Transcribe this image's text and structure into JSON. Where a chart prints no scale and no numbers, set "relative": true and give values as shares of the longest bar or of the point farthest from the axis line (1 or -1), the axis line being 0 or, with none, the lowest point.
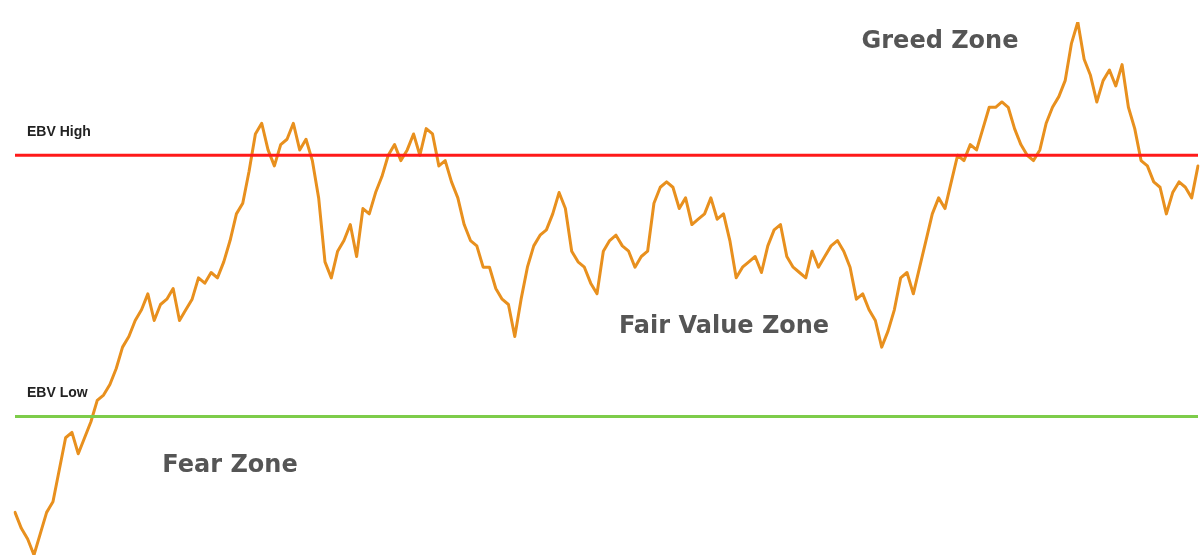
{
  "chart_data": {
    "type": "line",
    "relative": true,
    "legend": false,
    "marker": "none",
    "line_style": "solid",
    "categories": [
      null,
      null,
      null,
      null,
      null,
      null,
      null,
      null,
      null,
      null,
      null,
      null,
      null,
      null,
      null,
      null,
      null,
      null,
      null,
      null,
      null,
      null,
      null,
      null,
      null,
      null,
      null,
      null,
      null,
      null,
      null,
      null,
      null,
      null,
      null,
      null,
      null,
      null,
      null,
      null,
      null,
      null,
      null,
      null,
      null,
      null,
      null,
      null,
      null,
      null,
      null,
      null,
      null,
      null,
      null,
      null,
      null,
      null,
      null,
      null,
      null,
      null,
      null,
      null,
      null,
      null,
      null,
      null,
      null,
      null,
      null,
      null,
      null,
      null,
      null,
      null,
      null,
      null,
      null,
      null,
      null,
      null,
      null,
      null,
      null,
      null,
      null,
      null,
      null,
      null,
      null,
      null,
      null,
      null,
      null,
      null,
      null,
      null,
      null,
      null,
      null,
      null,
      null,
      null,
      null,
      null,
      null,
      null,
      null,
      null,
      null,
      null,
      null,
      null,
      null,
      null,
      null,
      null,
      null,
      null,
      null,
      null,
      null,
      null,
      null,
      null,
      null,
      null,
      null,
      null,
      null,
      null,
      null,
      null,
      null,
      null,
      null,
      null,
      null,
      null,
      null,
      null,
      null,
      null,
      null,
      null,
      null,
      null,
      null,
      null,
      null,
      null,
      null,
      null,
      null,
      null,
      null,
      null,
      null,
      null,
      null,
      null,
      null,
      null,
      null,
      null,
      null,
      null,
      null,
      null,
      null,
      null,
      null,
      null,
      null,
      null,
      null,
      null,
      null,
      null,
      null,
      null,
      null,
      null,
      null,
      null,
      null,
      null
    ],
    "series": [
      {
        "color": "#e8901e",
        "values": [
          0.08,
          0.05,
          0.03,
          0,
          0.04,
          0.08,
          0.1,
          0.16,
          0.22,
          0.23,
          0.19,
          0.22,
          0.25,
          0.29,
          0.3,
          0.32,
          0.35,
          0.39,
          0.41,
          0.44,
          0.46,
          0.49,
          0.44,
          0.47,
          0.48,
          0.5,
          0.44,
          0.46,
          0.48,
          0.52,
          0.51,
          0.53,
          0.52,
          0.55,
          0.59,
          0.64,
          0.66,
          0.72,
          0.79,
          0.81,
          0.76,
          0.73,
          0.77,
          0.78,
          0.81,
          0.76,
          0.78,
          0.74,
          0.67,
          0.55,
          0.52,
          0.57,
          0.59,
          0.62,
          0.56,
          0.65,
          0.64,
          0.68,
          0.71,
          0.75,
          0.77,
          0.74,
          0.76,
          0.79,
          0.75,
          0.8,
          0.79,
          0.73,
          0.74,
          0.7,
          0.67,
          0.62,
          0.59,
          0.58,
          0.54,
          0.54,
          0.5,
          0.48,
          0.47,
          0.41,
          0.48,
          0.54,
          0.58,
          0.6,
          0.61,
          0.64,
          0.68,
          0.65,
          0.57,
          0.55,
          0.54,
          0.51,
          0.49,
          0.57,
          0.59,
          0.6,
          0.58,
          0.57,
          0.54,
          0.56,
          0.57,
          0.66,
          0.69,
          0.7,
          0.69,
          0.65,
          0.67,
          0.62,
          0.63,
          0.64,
          0.67,
          0.63,
          0.64,
          0.59,
          0.52,
          0.54,
          0.55,
          0.56,
          0.53,
          0.58,
          0.61,
          0.62,
          0.56,
          0.54,
          0.53,
          0.52,
          0.57,
          0.54,
          0.56,
          0.58,
          0.59,
          0.57,
          0.54,
          0.48,
          0.49,
          0.46,
          0.44,
          0.39,
          0.42,
          0.46,
          0.52,
          0.53,
          0.49,
          0.54,
          0.59,
          0.64,
          0.67,
          0.65,
          0.7,
          0.75,
          0.74,
          0.77,
          0.76,
          0.8,
          0.84,
          0.84,
          0.85,
          0.84,
          0.8,
          0.77,
          0.75,
          0.74,
          0.76,
          0.81,
          0.84,
          0.86,
          0.89,
          0.96,
          1,
          0.93,
          0.9,
          0.85,
          0.89,
          0.91,
          0.88,
          0.92,
          0.84,
          0.8,
          0.74,
          0.73,
          0.7,
          0.69,
          0.64,
          0.68,
          0.7,
          0.69,
          0.67,
          0.73
        ]
      }
    ],
    "ref_lines": [
      {
        "axis": "y",
        "value": 0.75,
        "label": "EBV High",
        "color": "#ff1a1a"
      },
      {
        "axis": "y",
        "value": 0.26,
        "label": "EBV Low",
        "color": "#7dcc4a"
      }
    ],
    "annotations": [
      "Greed Zone",
      "Fair Value Zone",
      "Fear Zone"
    ]
  }
}
